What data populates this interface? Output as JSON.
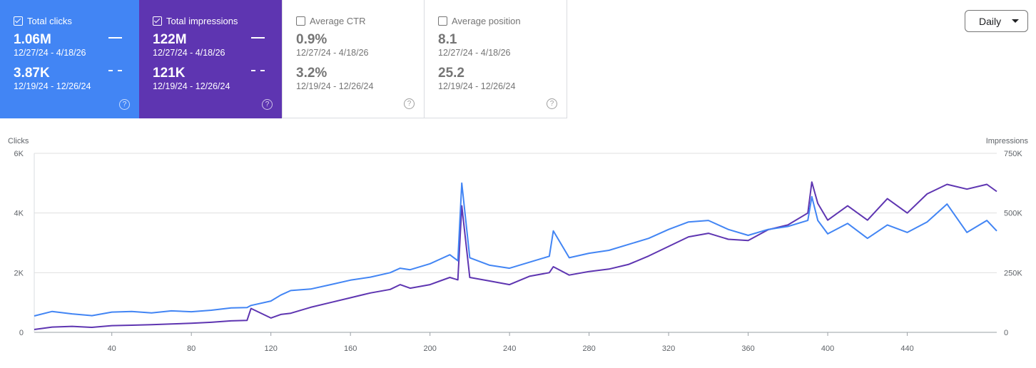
{
  "cards": [
    {
      "id": "clicks",
      "label": "Total clicks",
      "checked": true,
      "value1": "1.06M",
      "range1": "12/27/24 - 4/18/26",
      "value2": "3.87K",
      "range2": "12/19/24 - 12/26/24"
    },
    {
      "id": "impressions",
      "label": "Total impressions",
      "checked": true,
      "value1": "122M",
      "range1": "12/27/24 - 4/18/26",
      "value2": "121K",
      "range2": "12/19/24 - 12/26/24"
    },
    {
      "id": "ctr",
      "label": "Average CTR",
      "checked": false,
      "value1": "0.9%",
      "range1": "12/27/24 - 4/18/26",
      "value2": "3.2%",
      "range2": "12/19/24 - 12/26/24"
    },
    {
      "id": "position",
      "label": "Average position",
      "checked": false,
      "value1": "8.1",
      "range1": "12/27/24 - 4/18/26",
      "value2": "25.2",
      "range2": "12/19/24 - 12/26/24"
    }
  ],
  "help_glyph": "?",
  "daily_select": {
    "value": "Daily"
  },
  "colors": {
    "clicks": "#4285f4",
    "impressions": "#5e35b1"
  },
  "chart_data": {
    "type": "line",
    "left_axis": {
      "label": "Clicks",
      "ticks": [
        "0",
        "2K",
        "4K",
        "6K"
      ],
      "range": [
        0,
        6000
      ]
    },
    "right_axis": {
      "label": "Impressions",
      "ticks": [
        "0",
        "250K",
        "500K",
        "750K"
      ],
      "range": [
        0,
        750000
      ]
    },
    "x_axis": {
      "range": [
        1,
        485
      ],
      "ticks": [
        40,
        80,
        120,
        160,
        200,
        240,
        280,
        320,
        360,
        400,
        440
      ]
    },
    "grid": true,
    "series": [
      {
        "name": "Clicks",
        "axis": "left",
        "x": [
          1,
          10,
          20,
          30,
          40,
          50,
          60,
          70,
          80,
          90,
          100,
          108,
          110,
          120,
          125,
          130,
          140,
          150,
          160,
          170,
          180,
          185,
          190,
          200,
          205,
          210,
          214,
          216,
          220,
          230,
          240,
          250,
          260,
          262,
          270,
          280,
          290,
          300,
          310,
          320,
          330,
          340,
          350,
          360,
          370,
          380,
          390,
          392,
          395,
          400,
          410,
          420,
          430,
          440,
          450,
          460,
          470,
          480,
          485
        ],
        "values": [
          550,
          700,
          620,
          560,
          680,
          700,
          650,
          720,
          690,
          740,
          820,
          830,
          900,
          1050,
          1250,
          1400,
          1450,
          1600,
          1750,
          1850,
          2000,
          2150,
          2100,
          2300,
          2450,
          2600,
          2400,
          5000,
          2500,
          2250,
          2150,
          2350,
          2550,
          3400,
          2500,
          2650,
          2750,
          2950,
          3150,
          3450,
          3700,
          3750,
          3450,
          3250,
          3450,
          3550,
          3750,
          4550,
          3750,
          3300,
          3650,
          3150,
          3600,
          3350,
          3700,
          4300,
          3350,
          3750,
          3400
        ]
      },
      {
        "name": "Impressions",
        "axis": "right",
        "x": [
          1,
          10,
          20,
          30,
          40,
          50,
          60,
          70,
          80,
          90,
          100,
          108,
          110,
          120,
          125,
          130,
          140,
          150,
          160,
          170,
          180,
          185,
          190,
          200,
          205,
          210,
          214,
          216,
          220,
          230,
          240,
          250,
          260,
          262,
          270,
          280,
          290,
          300,
          310,
          320,
          330,
          340,
          350,
          360,
          370,
          380,
          390,
          392,
          395,
          400,
          410,
          420,
          430,
          440,
          450,
          460,
          470,
          480,
          485
        ],
        "values": [
          12000,
          22000,
          25000,
          21000,
          28000,
          30000,
          32000,
          35000,
          38000,
          42000,
          48000,
          50000,
          100000,
          60000,
          75000,
          80000,
          105000,
          125000,
          145000,
          165000,
          180000,
          200000,
          185000,
          200000,
          215000,
          230000,
          220000,
          530000,
          230000,
          215000,
          200000,
          235000,
          250000,
          275000,
          240000,
          255000,
          265000,
          285000,
          320000,
          360000,
          400000,
          415000,
          390000,
          385000,
          430000,
          450000,
          500000,
          630000,
          540000,
          470000,
          530000,
          470000,
          560000,
          500000,
          580000,
          620000,
          600000,
          620000,
          590000
        ]
      }
    ]
  }
}
